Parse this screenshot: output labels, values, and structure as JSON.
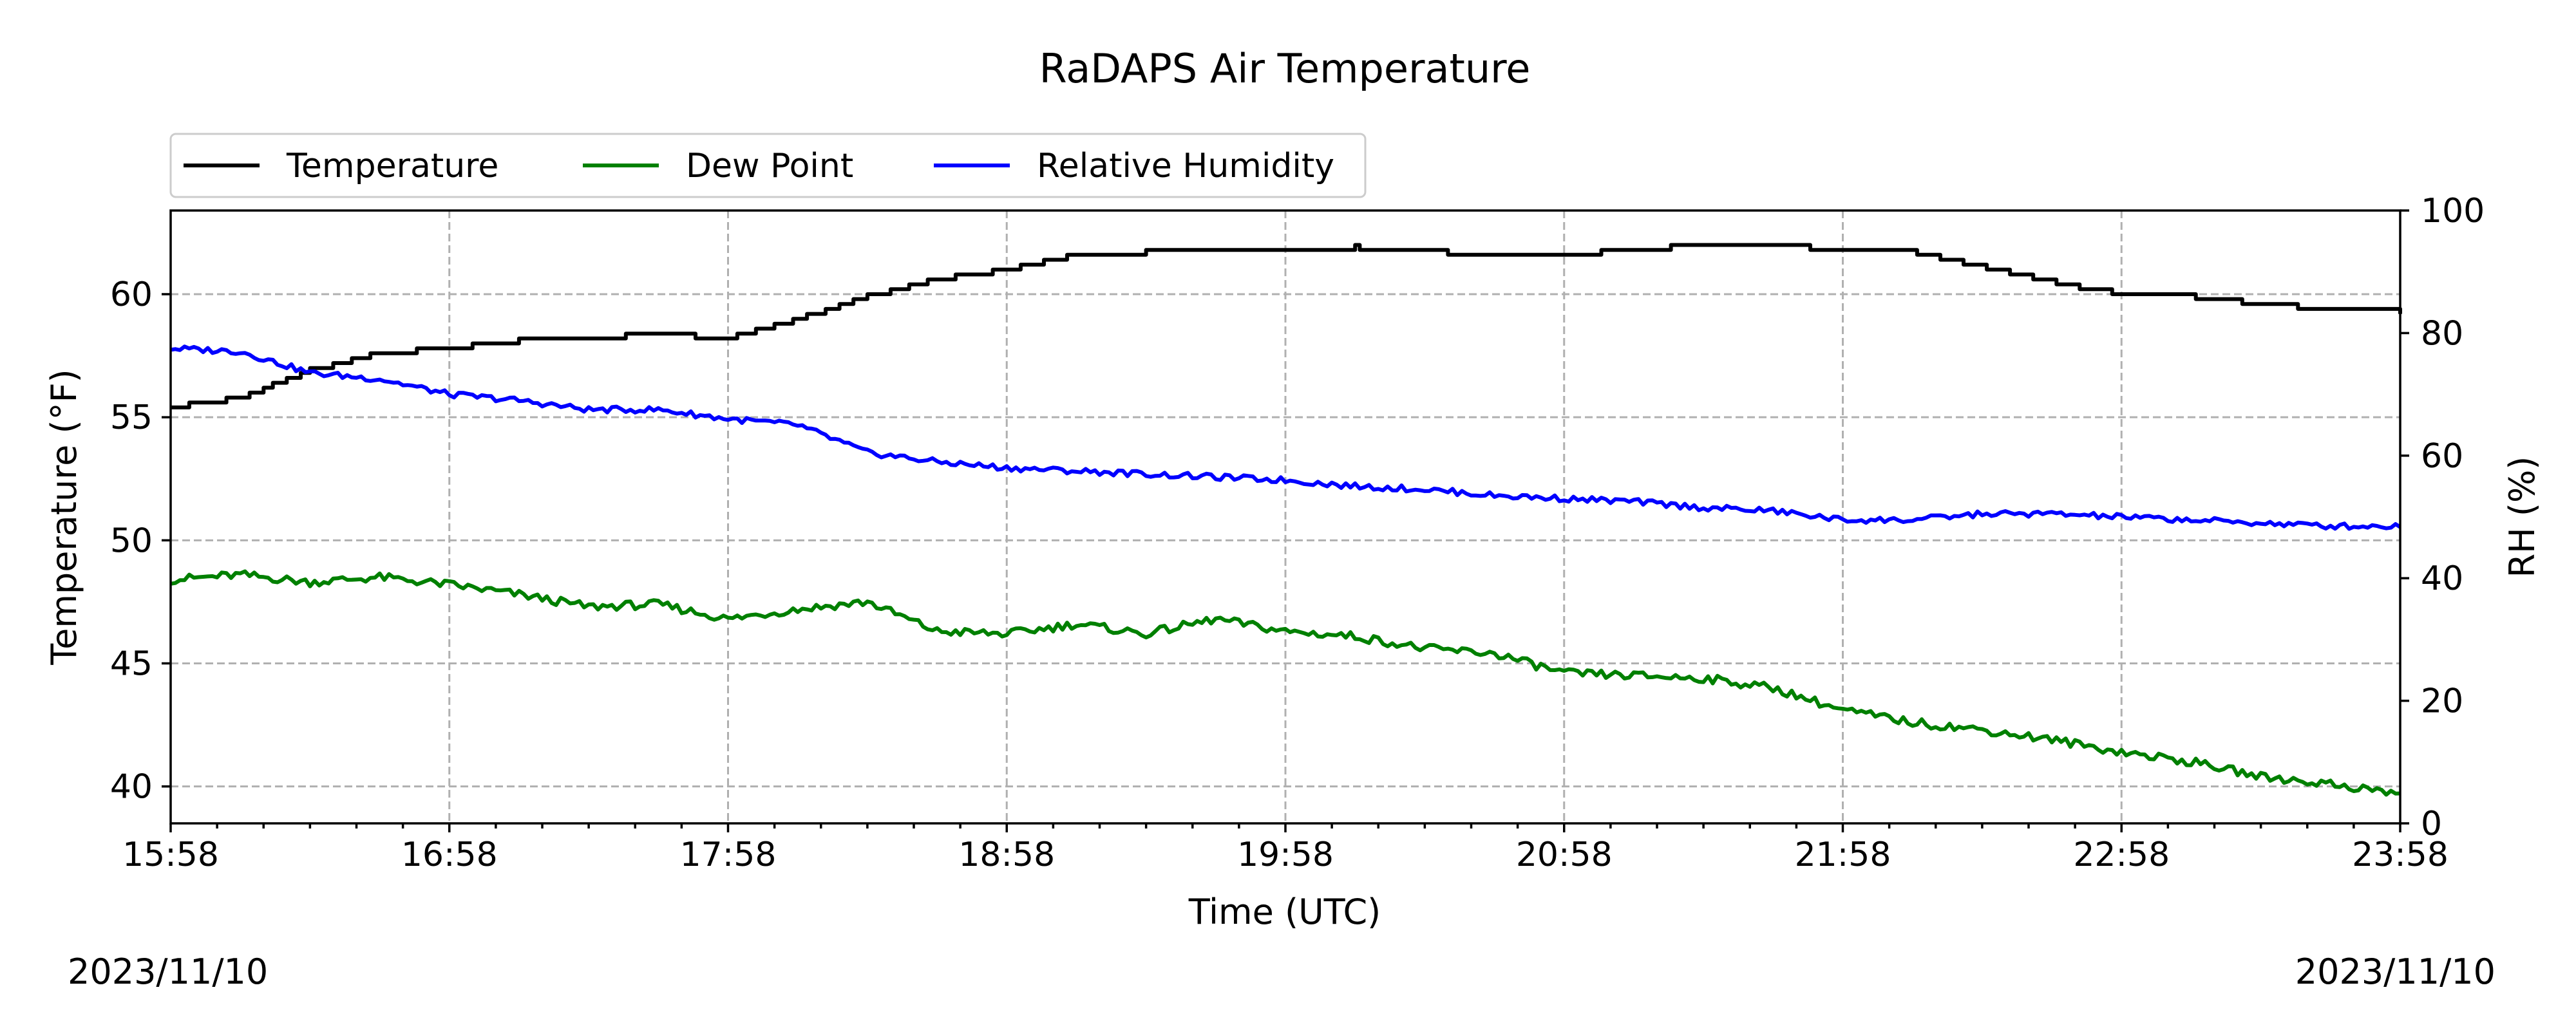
{
  "chart_data": {
    "type": "line",
    "title": "RaDAPS Air Temperature",
    "xlabel": "Time (UTC)",
    "ylabel": "Temperature ($^\\circ$F)",
    "ylabel_display": "Temperature (°F)",
    "y2label": "RH (%)",
    "date_left": "2023/11/10",
    "date_right": "2023/11/10",
    "x_tick_labels": [
      "15:58",
      "16:58",
      "17:58",
      "18:58",
      "19:58",
      "20:58",
      "21:58",
      "22:58",
      "23:58"
    ],
    "x_range_hours": [
      0,
      8
    ],
    "ylim": [
      38.5,
      63.4
    ],
    "y_ticks": [
      40,
      45,
      50,
      55,
      60
    ],
    "y2lim": [
      0,
      100
    ],
    "y2_ticks": [
      0,
      20,
      40,
      60,
      80,
      100
    ],
    "grid": true,
    "legend_placement": "top-left, above plot",
    "series": [
      {
        "name": "Temperature",
        "axis": "left",
        "color": "#000000",
        "x": [
          0.0,
          0.25,
          0.5,
          0.75,
          1.0,
          1.25,
          1.5,
          1.75,
          2.0,
          2.25,
          2.5,
          2.75,
          3.0,
          3.25,
          3.5,
          3.75,
          4.0,
          4.25,
          4.5,
          4.75,
          5.0,
          5.25,
          5.5,
          5.75,
          6.0,
          6.25,
          6.5,
          6.75,
          7.0,
          7.25,
          7.5,
          7.75,
          8.0
        ],
        "y": [
          55.4,
          55.8,
          56.9,
          57.6,
          57.8,
          58.1,
          58.2,
          58.4,
          58.2,
          59.0,
          59.9,
          60.6,
          61.0,
          61.6,
          61.7,
          61.8,
          61.7,
          61.9,
          61.8,
          61.5,
          61.6,
          61.8,
          62.0,
          62.0,
          61.8,
          61.7,
          61.1,
          60.5,
          60.0,
          59.9,
          59.6,
          59.4,
          59.3
        ]
      },
      {
        "name": "Dew Point",
        "axis": "left",
        "color": "#008000",
        "x": [
          0.0,
          0.25,
          0.5,
          0.75,
          1.0,
          1.25,
          1.5,
          1.75,
          2.0,
          2.25,
          2.5,
          2.75,
          3.0,
          3.25,
          3.5,
          3.75,
          4.0,
          4.25,
          4.5,
          4.75,
          5.0,
          5.25,
          5.5,
          5.75,
          6.0,
          6.25,
          6.5,
          6.75,
          7.0,
          7.25,
          7.5,
          7.75,
          8.0
        ],
        "y": [
          48.4,
          48.6,
          48.3,
          48.5,
          48.2,
          47.8,
          47.3,
          47.4,
          46.8,
          47.2,
          47.5,
          46.3,
          46.2,
          46.6,
          46.2,
          46.8,
          46.3,
          46.1,
          45.6,
          45.4,
          44.6,
          44.5,
          44.4,
          44.0,
          43.1,
          42.6,
          42.3,
          41.9,
          41.4,
          41.0,
          40.4,
          40.1,
          39.7
        ]
      },
      {
        "name": "Relative Humidity",
        "axis": "right",
        "color": "#0000ff",
        "x": [
          0.0,
          0.25,
          0.5,
          0.75,
          1.0,
          1.25,
          1.5,
          1.75,
          2.0,
          2.25,
          2.5,
          2.75,
          3.0,
          3.25,
          3.5,
          3.75,
          4.0,
          4.25,
          4.5,
          4.75,
          5.0,
          5.25,
          5.5,
          5.75,
          6.0,
          6.25,
          6.5,
          6.75,
          7.0,
          7.25,
          7.5,
          7.75,
          8.0
        ],
        "y": [
          77.5,
          77.0,
          73.5,
          72.5,
          70.0,
          69.0,
          67.5,
          67.5,
          66.0,
          65.0,
          60.5,
          59.0,
          58.0,
          57.5,
          57.0,
          56.5,
          56.0,
          55.0,
          54.5,
          53.5,
          53.0,
          52.5,
          51.5,
          51.0,
          49.5,
          49.5,
          50.5,
          50.5,
          50.0,
          49.5,
          49.0,
          48.5,
          48.5
        ]
      }
    ]
  }
}
